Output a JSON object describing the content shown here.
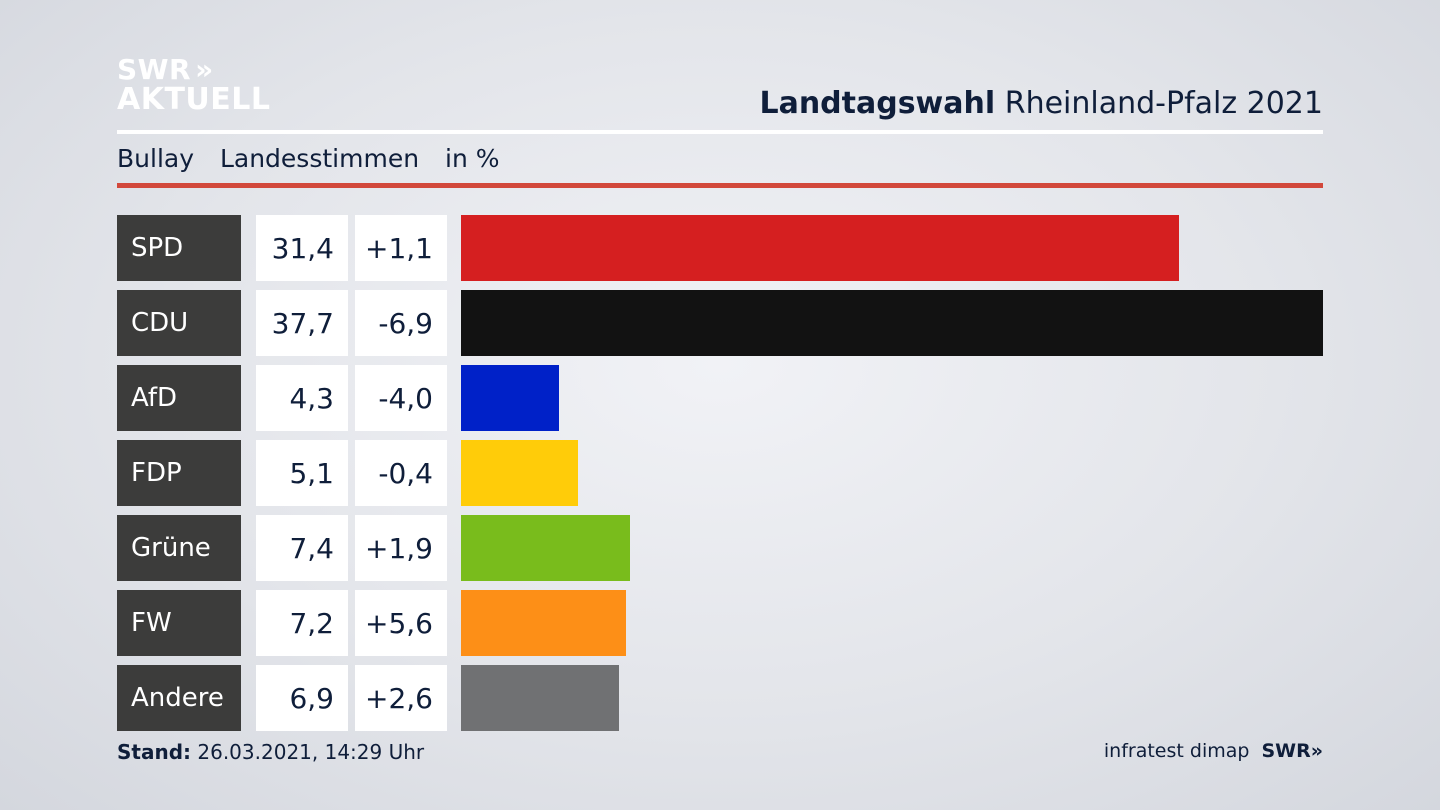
{
  "logo": {
    "line1": "SWR",
    "chevrons": "»",
    "line2": "AKTUELL"
  },
  "header": {
    "title_bold": "Landtagswahl",
    "title_rest": "Rheinland-Pfalz 2021"
  },
  "subheader": {
    "place": "Bullay",
    "measure": "Landesstimmen",
    "unit": "in %"
  },
  "footer": {
    "stand_label": "Stand:",
    "stand_value": "26.03.2021, 14:29 Uhr",
    "source": "infratest dimap",
    "brand": "SWR",
    "brand_chevrons": "»"
  },
  "colors": {
    "accent_line": "#d2483b",
    "label_bg": "#3c3c3b"
  },
  "chart_data": {
    "type": "bar",
    "orientation": "horizontal",
    "categories": [
      "SPD",
      "CDU",
      "AfD",
      "FDP",
      "Grüne",
      "FW",
      "Andere"
    ],
    "values": [
      31.4,
      37.7,
      4.3,
      5.1,
      7.4,
      7.2,
      6.9
    ],
    "value_labels": [
      "31,4",
      "37,7",
      "4,3",
      "5,1",
      "7,4",
      "7,2",
      "6,9"
    ],
    "diffs": [
      1.1,
      -6.9,
      -4.0,
      -0.4,
      1.9,
      5.6,
      2.6
    ],
    "diff_labels": [
      "+1,1",
      "-6,9",
      "-4,0",
      "-0,4",
      "+1,9",
      "+5,6",
      "+2,6"
    ],
    "colors": [
      "#d51f20",
      "#121212",
      "#0021c8",
      "#ffcc09",
      "#79bc1c",
      "#fd8f17",
      "#707173"
    ],
    "xlim": [
      0,
      37.7
    ]
  }
}
